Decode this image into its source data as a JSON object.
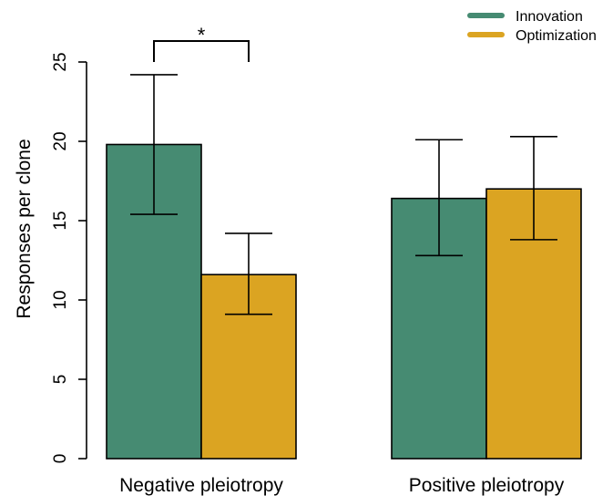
{
  "chart_data": {
    "type": "bar",
    "categories": [
      "Negative pleiotropy",
      "Positive pleiotropy"
    ],
    "series": [
      {
        "name": "Innovation",
        "color": "#468b72",
        "values": [
          19.8,
          16.4
        ],
        "error_low": [
          15.4,
          12.8
        ],
        "error_high": [
          24.2,
          20.1
        ]
      },
      {
        "name": "Optimization",
        "color": "#dba422",
        "values": [
          11.6,
          17.0
        ],
        "error_low": [
          9.1,
          13.8
        ],
        "error_high": [
          14.2,
          20.3
        ]
      }
    ],
    "ylabel": "Responses per clone",
    "xlabel": "",
    "ylim": [
      0,
      25
    ],
    "yticks": [
      0,
      5,
      10,
      15,
      20,
      25
    ],
    "legend_position": "top-right",
    "grid": false,
    "annotations": [
      {
        "text": "*",
        "category": "Negative pleiotropy",
        "between": [
          "Innovation",
          "Optimization"
        ]
      }
    ]
  }
}
